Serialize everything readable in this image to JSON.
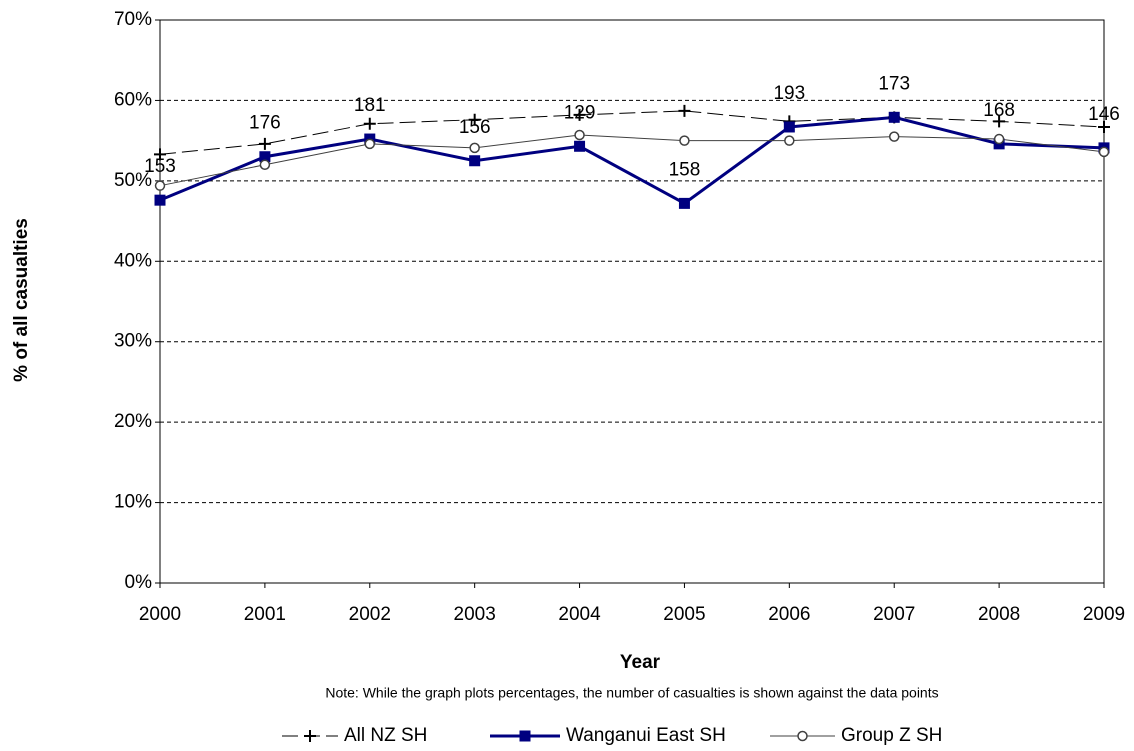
{
  "chart_data": {
    "type": "line",
    "x_label": "Year",
    "y_label": "% of all casualties",
    "note": "Note: While the graph plots percentages, the number of casualties is shown  against the data points",
    "categories": [
      "2000",
      "2001",
      "2002",
      "2003",
      "2004",
      "2005",
      "2006",
      "2007",
      "2008",
      "2009"
    ],
    "series": [
      {
        "name": "All NZ SH",
        "color": "#000000",
        "line_style": "dashed",
        "marker": "plus",
        "values": [
          53.3,
          54.6,
          57.1,
          57.6,
          58.2,
          58.7,
          57.4,
          57.9,
          57.4,
          56.7
        ]
      },
      {
        "name": "Wanganui East SH",
        "color": "#000080",
        "line_style": "solid",
        "marker": "square",
        "values": [
          47.6,
          53.0,
          55.2,
          52.5,
          54.3,
          47.2,
          56.7,
          57.9,
          54.6,
          54.1
        ]
      },
      {
        "name": "Group Z SH",
        "color": "#404040",
        "line_style": "solid",
        "marker": "circle",
        "values": [
          49.4,
          52.0,
          54.6,
          54.1,
          55.7,
          55.0,
          55.0,
          55.5,
          55.2,
          53.6
        ]
      }
    ],
    "casualty_counts": [
      "153",
      "176",
      "181",
      "156",
      "129",
      "158",
      "193",
      "173",
      "168",
      "146"
    ],
    "ylim": [
      0,
      70
    ],
    "yticks": [
      {
        "value": 0,
        "label": "0%"
      },
      {
        "value": 10,
        "label": "10%"
      },
      {
        "value": 20,
        "label": "20%"
      },
      {
        "value": 30,
        "label": "30%"
      },
      {
        "value": 40,
        "label": "40%"
      },
      {
        "value": 50,
        "label": "50%"
      },
      {
        "value": 60,
        "label": "60%"
      },
      {
        "value": 70,
        "label": "70%"
      }
    ],
    "grid": true,
    "legend": "bottom"
  }
}
